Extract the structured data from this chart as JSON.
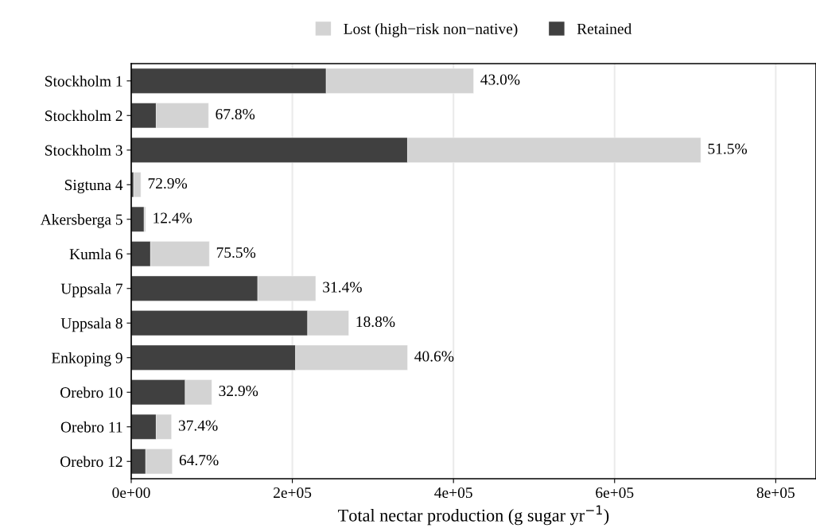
{
  "chart_data": {
    "type": "bar",
    "orientation": "horizontal",
    "stacked": true,
    "categories": [
      "Stockholm 1",
      "Stockholm 2",
      "Stockholm 3",
      "Sigtuna 4",
      "Akersberga 5",
      "Kumla 6",
      "Uppsala 7",
      "Uppsala 8",
      "Enkoping 9",
      "Orebro 10",
      "Orebro 11",
      "Orebro 12"
    ],
    "series": [
      {
        "name": "Retained",
        "color": "#404040",
        "values": [
          242000,
          31000,
          343000,
          3000,
          16000,
          24000,
          157000,
          219000,
          204000,
          67000,
          31000,
          18000
        ]
      },
      {
        "name": "Lost (high−risk non−native)",
        "color": "#d3d3d3",
        "values": [
          183000,
          65000,
          364000,
          9000,
          2000,
          73000,
          72000,
          51000,
          139000,
          33000,
          19000,
          33000
        ]
      }
    ],
    "annotations": [
      {
        "text": "43.0%",
        "x": 425000,
        "y": "Stockholm 1"
      },
      {
        "text": "67.8%",
        "x": 96000,
        "y": "Stockholm 2"
      },
      {
        "text": "51.5%",
        "x": 707000,
        "y": "Stockholm 3"
      },
      {
        "text": "72.9%",
        "x": 12000,
        "y": "Sigtuna 4"
      },
      {
        "text": "12.4%",
        "x": 18000,
        "y": "Akersberga 5"
      },
      {
        "text": "75.5%",
        "x": 97000,
        "y": "Kumla 6"
      },
      {
        "text": "31.4%",
        "x": 229000,
        "y": "Uppsala 7"
      },
      {
        "text": "18.8%",
        "x": 270000,
        "y": "Uppsala 8"
      },
      {
        "text": "40.6%",
        "x": 343000,
        "y": "Enkoping 9"
      },
      {
        "text": "32.9%",
        "x": 100000,
        "y": "Orebro 10"
      },
      {
        "text": "37.4%",
        "x": 50000,
        "y": "Orebro 11"
      },
      {
        "text": "64.7%",
        "x": 51000,
        "y": "Orebro 12"
      }
    ],
    "xlabel": "Total nectar production (g sugar yr$^{−1}$)",
    "xlim": [
      0,
      850000
    ],
    "xticks": [
      {
        "value": 0,
        "label": "0e+00"
      },
      {
        "value": 200000,
        "label": "2e+05"
      },
      {
        "value": 400000,
        "label": "4e+05"
      },
      {
        "value": 600000,
        "label": "6e+05"
      },
      {
        "value": 800000,
        "label": "8e+05"
      }
    ],
    "grid": "x",
    "legend": "top"
  }
}
